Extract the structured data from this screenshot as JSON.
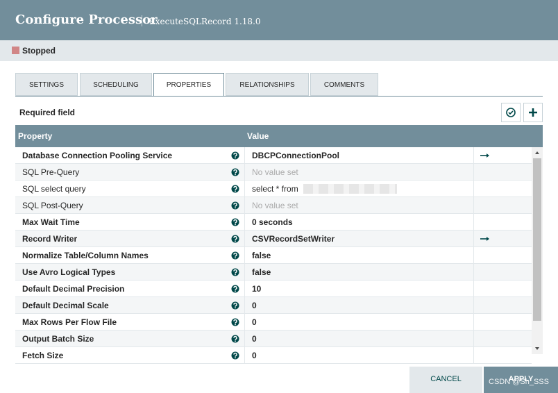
{
  "header": {
    "title": "Configure Processor",
    "subtitle": "ExecuteSQLRecord 1.18.0"
  },
  "status": "Stopped",
  "tabs": [
    "SETTINGS",
    "SCHEDULING",
    "PROPERTIES",
    "RELATIONSHIPS",
    "COMMENTS"
  ],
  "active_tab": 2,
  "required_label": "Required field",
  "table": {
    "columns": [
      "Property",
      "Value"
    ],
    "rows": [
      {
        "property": "Database Connection Pooling Service",
        "value": "DBCPConnectionPool",
        "required": true,
        "set": true,
        "link": true
      },
      {
        "property": "SQL Pre-Query",
        "value": "No value set",
        "required": false,
        "set": false,
        "link": false
      },
      {
        "property": "SQL select query",
        "value": "select * from",
        "required": false,
        "set": true,
        "link": false
      },
      {
        "property": "SQL Post-Query",
        "value": "No value set",
        "required": false,
        "set": false,
        "link": false
      },
      {
        "property": "Max Wait Time",
        "value": "0 seconds",
        "required": true,
        "set": true,
        "link": false
      },
      {
        "property": "Record Writer",
        "value": "CSVRecordSetWriter",
        "required": true,
        "set": true,
        "link": true
      },
      {
        "property": "Normalize Table/Column Names",
        "value": "false",
        "required": true,
        "set": true,
        "link": false
      },
      {
        "property": "Use Avro Logical Types",
        "value": "false",
        "required": true,
        "set": true,
        "link": false
      },
      {
        "property": "Default Decimal Precision",
        "value": "10",
        "required": true,
        "set": true,
        "link": false
      },
      {
        "property": "Default Decimal Scale",
        "value": "0",
        "required": true,
        "set": true,
        "link": false
      },
      {
        "property": "Max Rows Per Flow File",
        "value": "0",
        "required": true,
        "set": true,
        "link": false
      },
      {
        "property": "Output Batch Size",
        "value": "0",
        "required": true,
        "set": true,
        "link": false
      },
      {
        "property": "Fetch Size",
        "value": "0",
        "required": true,
        "set": true,
        "link": false
      }
    ]
  },
  "buttons": [
    "CANCEL",
    "APPLY"
  ],
  "watermark": "CSDN @Sh_SSS"
}
